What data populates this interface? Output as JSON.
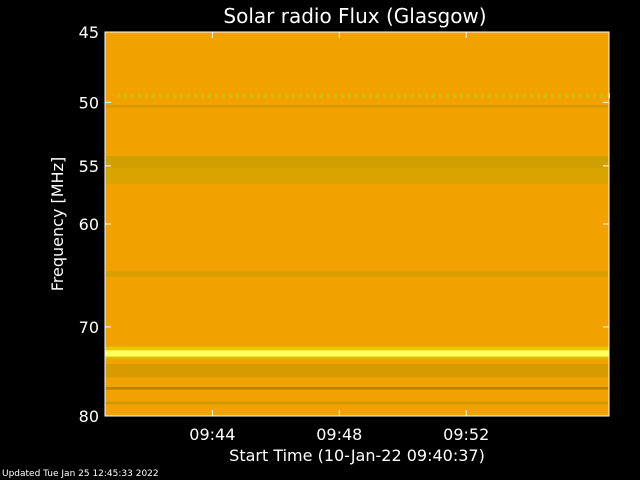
{
  "chart_data": {
    "type": "heatmap",
    "title": "Solar radio Flux (Glasgow)",
    "xlabel": "Start Time (10-Jan-22 09:40:37)",
    "ylabel": "Frequency [MHz]",
    "x_start": "09:40:37",
    "x_end": "09:56:30",
    "x_ticks": [
      "09:44",
      "09:48",
      "09:52"
    ],
    "y_scale": "log",
    "y_ticks": [
      45,
      50,
      55,
      60,
      70,
      80
    ],
    "ylim": [
      45,
      80
    ],
    "colormap": [
      "#e08a00",
      "#f2a000",
      "#c8a000",
      "#ffff40",
      "#ffffe0"
    ],
    "background_color": "#f1a100",
    "bands": [
      {
        "freq_from": 49.3,
        "freq_to": 49.7,
        "level": "dotted",
        "color": "#d7b800"
      },
      {
        "freq_from": 50.2,
        "freq_to": 50.4,
        "level": "weak",
        "color": "#d49800"
      },
      {
        "freq_from": 54.2,
        "freq_to": 55.2,
        "level": "moderate",
        "color": "#c9a000"
      },
      {
        "freq_from": 55.2,
        "freq_to": 56.5,
        "level": "weak",
        "color": "#d6a500"
      },
      {
        "freq_from": 64.4,
        "freq_to": 64.9,
        "level": "weak",
        "color": "#cfa100"
      },
      {
        "freq_from": 72.1,
        "freq_to": 72.5,
        "level": "moderate",
        "color": "#e6d000"
      },
      {
        "freq_from": 72.5,
        "freq_to": 73.2,
        "level": "strong",
        "color": "#ffff60"
      },
      {
        "freq_from": 73.2,
        "freq_to": 73.5,
        "level": "moderate",
        "color": "#d9c000"
      },
      {
        "freq_from": 74.0,
        "freq_to": 75.5,
        "level": "weak",
        "color": "#d29a00"
      },
      {
        "freq_from": 76.6,
        "freq_to": 76.9,
        "level": "weak",
        "color": "#b08000"
      },
      {
        "freq_from": 78.3,
        "freq_to": 78.6,
        "level": "weak",
        "color": "#c89400"
      }
    ]
  },
  "footer": {
    "updated": "Updated Tue Jan 25 12:45:33 2022"
  }
}
